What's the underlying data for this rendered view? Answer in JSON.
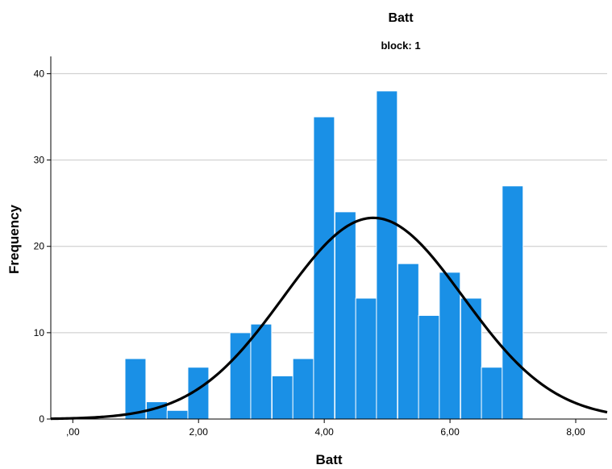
{
  "chart_data": {
    "type": "bar",
    "title": "Batt",
    "subtitle": "block: 1",
    "xlabel": "Batt",
    "ylabel": "Frequency",
    "xlim": [
      -0.35,
      8.5
    ],
    "ylim": [
      0,
      42
    ],
    "grid": true,
    "bar_color": "#1a90e6",
    "curve_color": "#000000",
    "bin_width": 0.333,
    "x_ticks": [
      {
        "value": 0,
        "label": ",00"
      },
      {
        "value": 2,
        "label": "2,00"
      },
      {
        "value": 4,
        "label": "4,00"
      },
      {
        "value": 6,
        "label": "6,00"
      },
      {
        "value": 8,
        "label": "8,00"
      }
    ],
    "y_ticks": [
      {
        "value": 0,
        "label": "0"
      },
      {
        "value": 10,
        "label": "10"
      },
      {
        "value": 20,
        "label": "20"
      },
      {
        "value": 30,
        "label": "30"
      },
      {
        "value": 40,
        "label": "40"
      }
    ],
    "bins": [
      {
        "start": 0.83,
        "value": 7
      },
      {
        "start": 1.17,
        "value": 2
      },
      {
        "start": 1.5,
        "value": 1
      },
      {
        "start": 1.83,
        "value": 6
      },
      {
        "start": 2.5,
        "value": 10
      },
      {
        "start": 2.83,
        "value": 11
      },
      {
        "start": 3.17,
        "value": 5
      },
      {
        "start": 3.5,
        "value": 7
      },
      {
        "start": 3.83,
        "value": 35
      },
      {
        "start": 4.17,
        "value": 24
      },
      {
        "start": 4.5,
        "value": 14
      },
      {
        "start": 4.83,
        "value": 38
      },
      {
        "start": 5.17,
        "value": 18
      },
      {
        "start": 5.5,
        "value": 12
      },
      {
        "start": 5.83,
        "value": 17
      },
      {
        "start": 6.17,
        "value": 14
      },
      {
        "start": 6.5,
        "value": 6
      },
      {
        "start": 6.83,
        "value": 27
      }
    ],
    "normal_curve": {
      "mean": 4.78,
      "std_dev": 1.43,
      "peak": 23.3
    }
  }
}
